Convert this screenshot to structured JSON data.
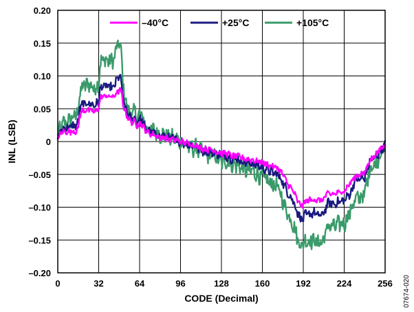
{
  "chart_data": {
    "type": "line",
    "title": "",
    "xlabel": "CODE (Decimal)",
    "ylabel": "INL (LSB)",
    "xlim": [
      0,
      256
    ],
    "ylim": [
      -0.2,
      0.2
    ],
    "xticks": [
      0,
      32,
      64,
      96,
      128,
      160,
      192,
      224,
      256
    ],
    "xtick_labels": [
      "0",
      "32",
      "64",
      "96",
      "128",
      "160",
      "192",
      "224",
      "256"
    ],
    "yticks": [
      0.2,
      0.15,
      0.1,
      0.05,
      0,
      -0.05,
      -0.1,
      -0.15,
      -0.2
    ],
    "ytick_labels": [
      "0.20",
      "0.15",
      "0.10",
      "0.05",
      "0",
      "–0.05",
      "–0.10",
      "–0.15",
      "–0.20"
    ],
    "grid": true,
    "legend_position": "top-center",
    "figure_id": "07674-020",
    "series": [
      {
        "name": "+105°C",
        "color": "#3a9a6a",
        "noise": 0.011,
        "x": [
          0,
          2,
          5,
          9,
          14,
          16,
          17,
          20,
          25,
          28,
          31,
          32,
          33,
          36,
          42,
          45,
          46,
          48,
          50,
          51,
          52,
          54,
          57,
          60,
          62,
          64,
          66,
          68,
          72,
          76,
          80,
          84,
          88,
          92,
          96,
          100,
          104,
          108,
          112,
          116,
          120,
          124,
          128,
          132,
          136,
          140,
          144,
          148,
          152,
          156,
          160,
          164,
          168,
          172,
          176,
          180,
          184,
          188,
          190,
          192,
          194,
          196,
          200,
          204,
          208,
          210,
          212,
          216,
          220,
          224,
          228,
          230,
          232,
          236,
          240,
          244,
          248,
          252,
          256
        ],
        "y": [
          0.01,
          0.02,
          0.028,
          0.032,
          0.04,
          0.045,
          0.072,
          0.085,
          0.088,
          0.08,
          0.085,
          0.088,
          0.118,
          0.125,
          0.122,
          0.13,
          0.145,
          0.15,
          0.13,
          0.09,
          0.07,
          0.055,
          0.04,
          0.045,
          0.035,
          0.04,
          0.04,
          0.025,
          0.02,
          0.015,
          0.01,
          0.01,
          0.005,
          0.005,
          0,
          -0.005,
          -0.01,
          -0.01,
          -0.015,
          -0.02,
          -0.02,
          -0.025,
          -0.03,
          -0.03,
          -0.035,
          -0.035,
          -0.04,
          -0.045,
          -0.045,
          -0.05,
          -0.055,
          -0.06,
          -0.065,
          -0.07,
          -0.09,
          -0.11,
          -0.125,
          -0.15,
          -0.158,
          -0.155,
          -0.15,
          -0.152,
          -0.15,
          -0.155,
          -0.15,
          -0.135,
          -0.128,
          -0.13,
          -0.125,
          -0.125,
          -0.11,
          -0.1,
          -0.09,
          -0.085,
          -0.08,
          -0.04,
          -0.035,
          -0.02,
          -0.01
        ]
      },
      {
        "name": "+25°C",
        "color": "#1a1a80",
        "noise": 0.006,
        "x": [
          0,
          2,
          5,
          9,
          14,
          16,
          17,
          20,
          25,
          28,
          31,
          32,
          33,
          36,
          42,
          45,
          46,
          48,
          50,
          51,
          52,
          54,
          57,
          60,
          62,
          64,
          66,
          68,
          72,
          76,
          80,
          84,
          88,
          92,
          96,
          100,
          104,
          108,
          112,
          116,
          120,
          124,
          128,
          132,
          136,
          140,
          144,
          148,
          152,
          156,
          160,
          164,
          168,
          172,
          176,
          180,
          184,
          188,
          190,
          192,
          194,
          196,
          200,
          204,
          208,
          210,
          212,
          216,
          220,
          224,
          228,
          230,
          232,
          236,
          240,
          244,
          248,
          252,
          256
        ],
        "y": [
          0.005,
          0.015,
          0.02,
          0.022,
          0.025,
          0.028,
          0.05,
          0.058,
          0.058,
          0.055,
          0.058,
          0.06,
          0.08,
          0.085,
          0.082,
          0.085,
          0.095,
          0.1,
          0.088,
          0.065,
          0.055,
          0.045,
          0.035,
          0.035,
          0.03,
          0.035,
          0.032,
          0.02,
          0.015,
          0.012,
          0.008,
          0.008,
          0.004,
          0.004,
          0,
          -0.003,
          -0.006,
          -0.008,
          -0.012,
          -0.015,
          -0.015,
          -0.018,
          -0.022,
          -0.022,
          -0.026,
          -0.026,
          -0.03,
          -0.032,
          -0.033,
          -0.036,
          -0.04,
          -0.043,
          -0.047,
          -0.05,
          -0.062,
          -0.078,
          -0.09,
          -0.11,
          -0.118,
          -0.118,
          -0.11,
          -0.112,
          -0.108,
          -0.113,
          -0.11,
          -0.098,
          -0.093,
          -0.095,
          -0.092,
          -0.09,
          -0.08,
          -0.075,
          -0.06,
          -0.058,
          -0.055,
          -0.03,
          -0.025,
          -0.015,
          -0.005
        ]
      },
      {
        "name": "–40°C",
        "color": "#ff00ff",
        "noise": 0.004,
        "x": [
          0,
          2,
          5,
          9,
          14,
          16,
          17,
          20,
          25,
          28,
          31,
          32,
          33,
          36,
          42,
          45,
          46,
          48,
          50,
          51,
          52,
          54,
          57,
          60,
          62,
          64,
          66,
          68,
          72,
          76,
          80,
          84,
          88,
          92,
          96,
          100,
          104,
          108,
          112,
          116,
          120,
          124,
          128,
          132,
          136,
          140,
          144,
          148,
          152,
          156,
          160,
          164,
          168,
          172,
          176,
          180,
          184,
          188,
          190,
          192,
          194,
          196,
          200,
          204,
          208,
          210,
          212,
          216,
          220,
          224,
          228,
          230,
          232,
          236,
          240,
          244,
          248,
          252,
          256
        ],
        "y": [
          0.003,
          0.012,
          0.015,
          0.015,
          0.016,
          0.018,
          0.04,
          0.048,
          0.048,
          0.045,
          0.048,
          0.05,
          0.065,
          0.07,
          0.068,
          0.07,
          0.075,
          0.078,
          0.075,
          0.055,
          0.05,
          0.04,
          0.03,
          0.03,
          0.025,
          0.028,
          0.026,
          0.018,
          0.012,
          0.01,
          0.006,
          0.006,
          0.003,
          0.003,
          0,
          -0.002,
          -0.004,
          -0.006,
          -0.01,
          -0.012,
          -0.012,
          -0.015,
          -0.018,
          -0.018,
          -0.022,
          -0.022,
          -0.025,
          -0.027,
          -0.028,
          -0.03,
          -0.032,
          -0.035,
          -0.038,
          -0.04,
          -0.05,
          -0.065,
          -0.075,
          -0.092,
          -0.097,
          -0.097,
          -0.09,
          -0.09,
          -0.088,
          -0.09,
          -0.088,
          -0.08,
          -0.08,
          -0.08,
          -0.078,
          -0.075,
          -0.065,
          -0.06,
          -0.055,
          -0.05,
          -0.048,
          -0.028,
          -0.022,
          -0.012,
          -0.004
        ]
      }
    ],
    "legend": [
      {
        "label": "–40°C",
        "color": "#ff00ff"
      },
      {
        "label": "+25°C",
        "color": "#1a1a80"
      },
      {
        "label": "+105°C",
        "color": "#3a9a6a"
      }
    ]
  }
}
